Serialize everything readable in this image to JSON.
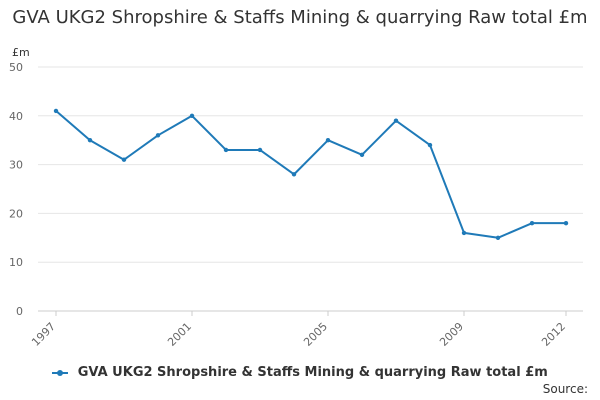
{
  "chart_data": {
    "type": "line",
    "title": "GVA UKG2 Shropshire & Staffs Mining & quarrying Raw total £m",
    "ylabel": "£m",
    "xlabel": "",
    "x": [
      1997,
      1998,
      1999,
      2000,
      2001,
      2002,
      2003,
      2004,
      2005,
      2006,
      2007,
      2008,
      2009,
      2010,
      2011,
      2012
    ],
    "x_tick_labels": [
      "1997",
      "2001",
      "2005",
      "2009",
      "2012"
    ],
    "y_ticks": [
      0,
      10,
      20,
      30,
      40,
      50
    ],
    "ylim": [
      0,
      50
    ],
    "grid": true,
    "legend_position": "bottom",
    "series": [
      {
        "name": "GVA UKG2 Shropshire & Staffs Mining & quarrying Raw total £m",
        "color": "#1f7ab8",
        "values": [
          41,
          35,
          31,
          36,
          40,
          33,
          33,
          28,
          35,
          32,
          39,
          34,
          16,
          15,
          18,
          18
        ]
      }
    ]
  },
  "footer": {
    "source_label": "Source:"
  }
}
